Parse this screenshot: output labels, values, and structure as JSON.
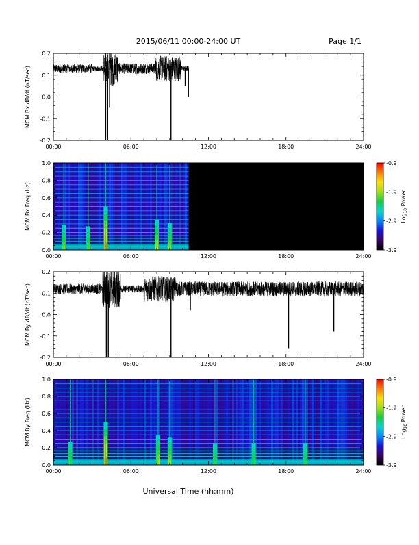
{
  "header": {
    "title": "2015/06/11  00:00-24:00 UT",
    "page": "Page 1/1"
  },
  "footer": {
    "xlabel": "Universal Time (hh:mm)"
  },
  "colors": {
    "trace": "#000000",
    "background": "#ffffff",
    "spectrogram_empty": "#000000",
    "colormap": [
      "#000000",
      "#3c0060",
      "#1a14d8",
      "#0088ff",
      "#00d8d0",
      "#10d040",
      "#a0e010",
      "#ffe000",
      "#ff8000",
      "#ff0000"
    ]
  },
  "chart_data": [
    {
      "type": "line",
      "ylabel": "MCM Bx dB/dt (nT/sec)",
      "xlim": [
        0,
        24
      ],
      "ylim": [
        -0.2,
        0.2
      ],
      "xticklabels": [
        "00:00",
        "06:00",
        "12:00",
        "18:00",
        "24:00"
      ],
      "xticks": [
        0,
        6,
        12,
        18,
        24
      ],
      "yticklabels": [
        "-0.2",
        "-0.1",
        "0.0",
        "0.1",
        "0.2"
      ],
      "yticks": [
        -0.2,
        -0.1,
        0.0,
        0.1,
        0.2
      ],
      "series": [
        {
          "baseline": 0.13,
          "noise_amplitude": 0.012,
          "data_end_hour": 10.45,
          "bursts": [
            {
              "start": 3.8,
              "end": 5.0,
              "amplitude": 0.08
            },
            {
              "start": 7.9,
              "end": 9.9,
              "amplitude": 0.06
            },
            {
              "start": 0.0,
              "end": 3.0,
              "amplitude": 0.02
            },
            {
              "start": 5.0,
              "end": 7.9,
              "amplitude": 0.025
            }
          ],
          "dips": [
            {
              "x": 4.05,
              "y": -0.2
            },
            {
              "x": 4.2,
              "y": -0.2
            },
            {
              "x": 4.35,
              "y": -0.05
            },
            {
              "x": 9.1,
              "y": -0.2
            },
            {
              "x": 10.2,
              "y": 0.05
            },
            {
              "x": 10.45,
              "y": 0.0
            }
          ]
        }
      ]
    },
    {
      "type": "heatmap",
      "ylabel": "MCM Bx Freq (Hz)",
      "xlim": [
        0,
        24
      ],
      "ylim": [
        0,
        1.0
      ],
      "xticklabels": [
        "00:00",
        "06:00",
        "12:00",
        "18:00",
        "24:00"
      ],
      "xticks": [
        0,
        6,
        12,
        18,
        24
      ],
      "yticklabels": [
        "0.0",
        "0.2",
        "0.4",
        "0.6",
        "0.8",
        "1.0"
      ],
      "yticks": [
        0.0,
        0.2,
        0.4,
        0.6,
        0.8,
        1.0
      ],
      "data_end_hour": 10.45,
      "harmonic_lines_hz": [
        0.033,
        0.066,
        0.1,
        0.133,
        0.166,
        0.2,
        0.25,
        0.3,
        0.35,
        0.4,
        0.45,
        0.5,
        0.55,
        0.6,
        0.65,
        0.7,
        0.75,
        0.8,
        0.85,
        0.9,
        0.95
      ],
      "hot_spots": [
        {
          "x": 4.05,
          "intensity": 1.0
        },
        {
          "x": 0.8,
          "intensity": 0.4
        },
        {
          "x": 2.7,
          "intensity": 0.35
        },
        {
          "x": 8.0,
          "intensity": 0.55
        },
        {
          "x": 9.0,
          "intensity": 0.45
        }
      ],
      "colorbar": {
        "label": "Log10 Power",
        "label_main": "Log",
        "label_sub": "10",
        "label_tail": " Power",
        "min": -3.9,
        "max": -0.9,
        "ticklabels": [
          "-0.9",
          "-1.9",
          "-2.9",
          "-3.9"
        ],
        "ticks": [
          -0.9,
          -1.9,
          -2.9,
          -3.9
        ]
      }
    },
    {
      "type": "line",
      "ylabel": "MCM By dB/dt (nT/sec)",
      "xlim": [
        0,
        24
      ],
      "ylim": [
        -0.2,
        0.2
      ],
      "xticklabels": [
        "00:00",
        "06:00",
        "12:00",
        "18:00",
        "24:00"
      ],
      "xticks": [
        0,
        6,
        12,
        18,
        24
      ],
      "yticklabels": [
        "-0.2",
        "-0.1",
        "0.0",
        "0.1",
        "0.2"
      ],
      "yticks": [
        -0.2,
        -0.1,
        0.0,
        0.1,
        0.2
      ],
      "series": [
        {
          "baseline": 0.12,
          "noise_amplitude": 0.018,
          "data_end_hour": 24,
          "bursts": [
            {
              "start": 3.8,
              "end": 5.2,
              "amplitude": 0.09
            },
            {
              "start": 7.0,
              "end": 9.5,
              "amplitude": 0.06
            },
            {
              "start": 9.5,
              "end": 24.0,
              "amplitude": 0.035
            },
            {
              "start": 0.0,
              "end": 3.8,
              "amplitude": 0.025
            }
          ],
          "dips": [
            {
              "x": 4.1,
              "y": -0.2
            },
            {
              "x": 4.25,
              "y": -0.2
            },
            {
              "x": 9.1,
              "y": -0.2
            },
            {
              "x": 10.6,
              "y": 0.02
            },
            {
              "x": 18.2,
              "y": -0.16
            },
            {
              "x": 21.7,
              "y": -0.08
            }
          ]
        }
      ]
    },
    {
      "type": "heatmap",
      "ylabel": "MCM By Freq (Hz)",
      "xlim": [
        0,
        24
      ],
      "ylim": [
        0,
        1.0
      ],
      "xticklabels": [
        "00:00",
        "06:00",
        "12:00",
        "18:00",
        "24:00"
      ],
      "xticks": [
        0,
        6,
        12,
        18,
        24
      ],
      "yticklabels": [
        "0.0",
        "0.2",
        "0.4",
        "0.6",
        "0.8",
        "1.0"
      ],
      "yticks": [
        0.0,
        0.2,
        0.4,
        0.6,
        0.8,
        1.0
      ],
      "data_end_hour": 24,
      "harmonic_lines_hz": [
        0.033,
        0.066,
        0.1,
        0.133,
        0.166,
        0.2,
        0.25,
        0.3,
        0.35,
        0.4,
        0.45,
        0.5,
        0.55,
        0.6,
        0.65,
        0.7,
        0.75,
        0.8,
        0.85,
        0.9,
        0.95
      ],
      "hot_spots": [
        {
          "x": 4.05,
          "intensity": 1.0
        },
        {
          "x": 1.3,
          "intensity": 0.35
        },
        {
          "x": 8.1,
          "intensity": 0.55
        },
        {
          "x": 9.0,
          "intensity": 0.5
        },
        {
          "x": 12.5,
          "intensity": 0.3
        },
        {
          "x": 15.5,
          "intensity": 0.3
        },
        {
          "x": 19.5,
          "intensity": 0.3
        }
      ],
      "colorbar": {
        "label": "Log10 Power",
        "label_main": "Log",
        "label_sub": "10",
        "label_tail": " Power",
        "min": -3.9,
        "max": -0.9,
        "ticklabels": [
          "-0.9",
          "-1.9",
          "-2.9",
          "-3.9"
        ],
        "ticks": [
          -0.9,
          -1.9,
          -2.9,
          -3.9
        ]
      }
    }
  ]
}
